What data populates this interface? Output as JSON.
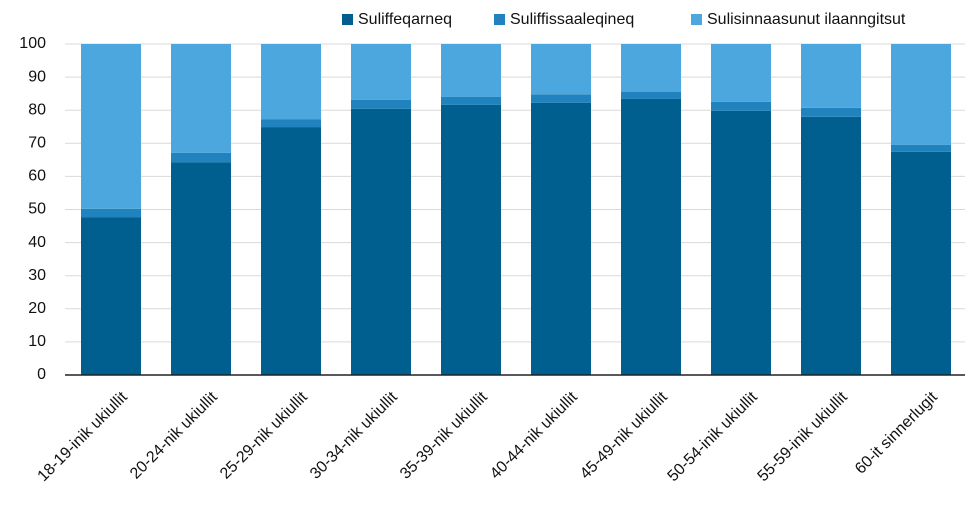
{
  "chart_data": {
    "type": "stacked_bar",
    "categories": [
      "18-19-inik ukiullit",
      "20-24-nik ukiullit",
      "25-29-nik ukiullit",
      "30-34-nik ukiullit",
      "35-39-nik ukiullit",
      "40-44-nik ukiullit",
      "45-49-nik ukiullit",
      "50-54-inik ukiullit",
      "55-59-inik ukiullit",
      "60-it sinnerlugit"
    ],
    "series": [
      {
        "name": "Suliffeqarneq",
        "color": "#005f8e",
        "values": [
          47.7,
          64.3,
          74.9,
          80.4,
          81.6,
          82.2,
          83.4,
          79.8,
          78.0,
          67.4
        ]
      },
      {
        "name": "Suliffissaaleqineq",
        "color": "#2183bd",
        "values": [
          2.5,
          2.8,
          2.4,
          2.7,
          2.4,
          2.6,
          2.1,
          2.7,
          2.7,
          2.1
        ]
      },
      {
        "name": "Sulisinnaasunut ilaanngitsut",
        "color": "#4ba7dd",
        "values": [
          49.8,
          32.9,
          22.7,
          16.9,
          16.0,
          15.2,
          14.5,
          17.5,
          19.3,
          30.5
        ]
      }
    ],
    "ylim": [
      0,
      100
    ],
    "yticks": [
      0,
      10,
      20,
      30,
      40,
      50,
      60,
      70,
      80,
      90,
      100
    ],
    "grid": true,
    "legend": "top"
  }
}
